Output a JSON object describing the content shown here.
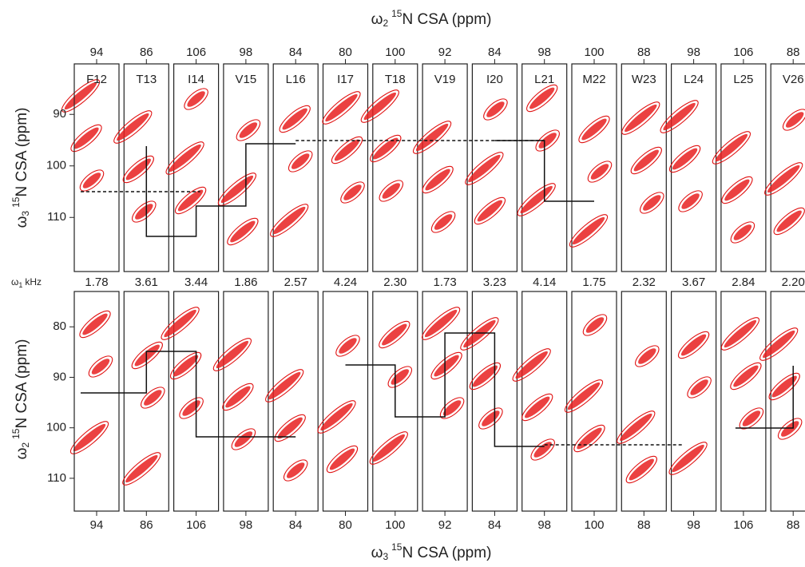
{
  "figure": {
    "top_title": {
      "symbol": "ω",
      "subscript": "2",
      "isotope": "15",
      "text": "N CSA (ppm)"
    },
    "bottom_title": {
      "symbol": "ω",
      "subscript": "3",
      "isotope": "15",
      "text": "N CSA  (ppm)"
    },
    "top_y_label": {
      "symbol": "ω",
      "subscript": "3",
      "isotope": "15",
      "text": "N CSA  (ppm)"
    },
    "bottom_y_label": {
      "symbol": "ω",
      "subscript": "2",
      "isotope": "15",
      "text": "N CSA (ppm)"
    },
    "omega1_label": {
      "symbol": "ω",
      "subscript": "1",
      "text": "kHz"
    },
    "top_panel": {
      "ylim": [
        120.5,
        80.2
      ],
      "yticks": [
        90,
        100,
        110
      ]
    },
    "bottom_panel": {
      "ylim": [
        116.5,
        73
      ],
      "yticks": [
        80,
        90,
        100,
        110
      ]
    },
    "strips": [
      {
        "residue": "F12",
        "top_tick": 94,
        "khz": "1.78",
        "bottom_tick": 94
      },
      {
        "residue": "T13",
        "top_tick": 86,
        "khz": "3.61",
        "bottom_tick": 86
      },
      {
        "residue": "I14",
        "top_tick": 106,
        "khz": "3.44",
        "bottom_tick": 106
      },
      {
        "residue": "V15",
        "top_tick": 98,
        "khz": "1.86",
        "bottom_tick": 98
      },
      {
        "residue": "L16",
        "top_tick": 84,
        "khz": "2.57",
        "bottom_tick": 84
      },
      {
        "residue": "I17",
        "top_tick": 80,
        "khz": "4.24",
        "bottom_tick": 80
      },
      {
        "residue": "T18",
        "top_tick": 100,
        "khz": "2.30",
        "bottom_tick": 100
      },
      {
        "residue": "V19",
        "top_tick": 92,
        "khz": "1.73",
        "bottom_tick": 92
      },
      {
        "residue": "I20",
        "top_tick": 84,
        "khz": "3.23",
        "bottom_tick": 84
      },
      {
        "residue": "L21",
        "top_tick": 98,
        "khz": "4.14",
        "bottom_tick": 98
      },
      {
        "residue": "M22",
        "top_tick": 100,
        "khz": "1.75",
        "bottom_tick": 100
      },
      {
        "residue": "W23",
        "top_tick": 88,
        "khz": "2.32",
        "bottom_tick": 88
      },
      {
        "residue": "L24",
        "top_tick": 98,
        "khz": "3.67",
        "bottom_tick": 98
      },
      {
        "residue": "L25",
        "top_tick": 106,
        "khz": "2.84",
        "bottom_tick": 106
      },
      {
        "residue": "V26",
        "top_tick": 88,
        "khz": "2.20",
        "bottom_tick": 88
      }
    ]
  }
}
